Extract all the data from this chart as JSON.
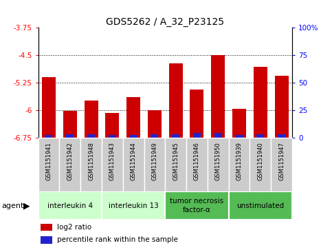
{
  "title": "GDS5262 / A_32_P23125",
  "samples": [
    "GSM1151941",
    "GSM1151942",
    "GSM1151948",
    "GSM1151943",
    "GSM1151944",
    "GSM1151949",
    "GSM1151945",
    "GSM1151946",
    "GSM1151950",
    "GSM1151939",
    "GSM1151940",
    "GSM1151947"
  ],
  "log2_values": [
    -5.1,
    -6.02,
    -5.75,
    -6.08,
    -5.65,
    -6.0,
    -4.72,
    -5.45,
    -4.5,
    -5.97,
    -4.82,
    -5.07
  ],
  "percentile_values": [
    2,
    3,
    3,
    2,
    2,
    3,
    3,
    4,
    4,
    2,
    3,
    3
  ],
  "ylim_left": [
    -6.75,
    -3.75
  ],
  "ylim_right": [
    0,
    100
  ],
  "yticks_left": [
    -6.75,
    -6.0,
    -5.25,
    -4.5,
    -3.75
  ],
  "yticks_right": [
    0,
    25,
    50,
    75,
    100
  ],
  "ytick_labels_left": [
    "-6.75",
    "-6",
    "-5.25",
    "-4.5",
    "-3.75"
  ],
  "ytick_labels_right": [
    "0",
    "25",
    "50",
    "75",
    "100%"
  ],
  "hlines": [
    -4.5,
    -5.25,
    -6.0
  ],
  "bar_color": "#cc0000",
  "percentile_color": "#2222cc",
  "agent_groups": [
    {
      "label": "interleukin 4",
      "start": 0,
      "end": 2,
      "color": "#ccffcc"
    },
    {
      "label": "interleukin 13",
      "start": 3,
      "end": 5,
      "color": "#ccffcc"
    },
    {
      "label": "tumor necrosis\nfactor-α",
      "start": 6,
      "end": 8,
      "color": "#55bb55"
    },
    {
      "label": "unstimulated",
      "start": 9,
      "end": 11,
      "color": "#55bb55"
    }
  ],
  "agent_label": "agent",
  "legend_items": [
    {
      "color": "#cc0000",
      "label": "log2 ratio"
    },
    {
      "color": "#2222cc",
      "label": "percentile rank within the sample"
    }
  ],
  "bar_width": 0.65,
  "sample_box_color": "#cccccc",
  "sample_box_edge": "#ffffff",
  "plot_bg": "#ffffff",
  "base_value": -6.75,
  "title_fontsize": 10,
  "tick_fontsize": 7.5,
  "sample_fontsize": 6.0,
  "agent_fontsize": 7.5,
  "legend_fontsize": 7.5
}
